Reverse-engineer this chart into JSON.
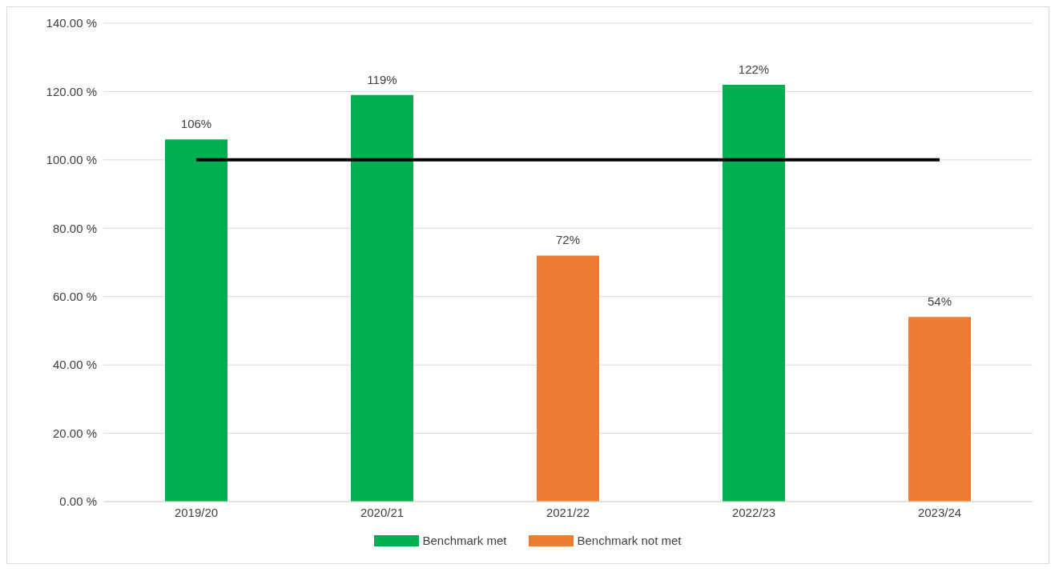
{
  "chart_data": {
    "type": "bar",
    "categories": [
      "2019/20",
      "2020/21",
      "2021/22",
      "2022/23",
      "2023/24"
    ],
    "series": [
      {
        "name": "Benchmark met",
        "color": "#00b050",
        "values": [
          106,
          119,
          null,
          122,
          null
        ],
        "value_labels": [
          "106%",
          "119%",
          null,
          "122%",
          null
        ]
      },
      {
        "name": "Benchmark not met",
        "color": "#ed7d31",
        "values": [
          null,
          null,
          72,
          null,
          54
        ],
        "value_labels": [
          null,
          null,
          "72%",
          null,
          "54%"
        ]
      },
      {
        "type": "line",
        "color": "#000000",
        "values": [
          100,
          100,
          100,
          100,
          100
        ],
        "marker": "none",
        "line_style": "solid"
      }
    ],
    "ylim": [
      0,
      140
    ],
    "yticks": [
      {
        "value": 0,
        "label": "0.00 %"
      },
      {
        "value": 20,
        "label": "20.00 %"
      },
      {
        "value": 40,
        "label": "40.00 %"
      },
      {
        "value": 60,
        "label": "60.00 %"
      },
      {
        "value": 80,
        "label": "80.00 %"
      },
      {
        "value": 100,
        "label": "100.00 %"
      },
      {
        "value": 120,
        "label": "120.00 %"
      },
      {
        "value": 140,
        "label": "140.00 %"
      }
    ],
    "grid": "y",
    "legend": "bottom"
  }
}
